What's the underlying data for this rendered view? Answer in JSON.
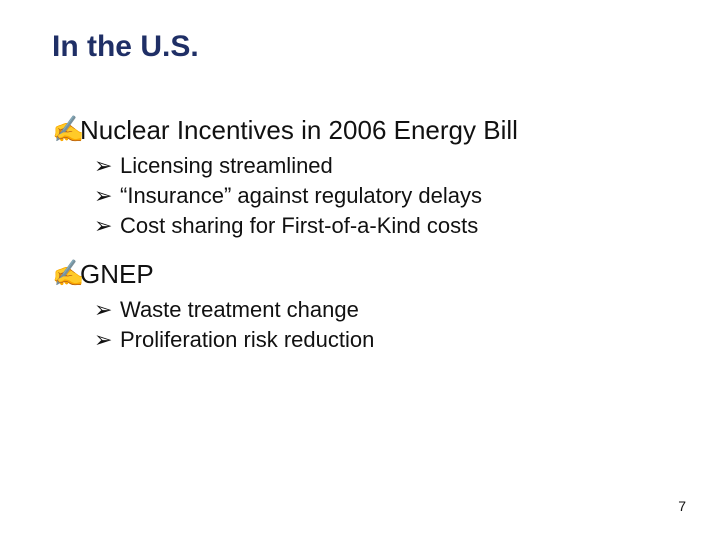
{
  "slide": {
    "title": "In the U.S.",
    "title_color": "#1f2f66",
    "title_fontsize": 30,
    "background_color": "#ffffff",
    "page_number": "7",
    "bullets": {
      "level1_glyph": "✍",
      "level1_color": "#6a1b9a",
      "level1_fontsize": 26,
      "level2_glyph": "➢",
      "level2_color": "#111111",
      "level2_fontsize": 22
    },
    "items": [
      {
        "text": "Nuclear Incentives in 2006 Energy Bill",
        "sub": [
          "Licensing streamlined",
          "“Insurance” against regulatory delays",
          "Cost sharing for First-of-a-Kind costs"
        ]
      },
      {
        "text": "GNEP",
        "sub": [
          "Waste treatment change",
          "Proliferation risk reduction"
        ]
      }
    ]
  }
}
